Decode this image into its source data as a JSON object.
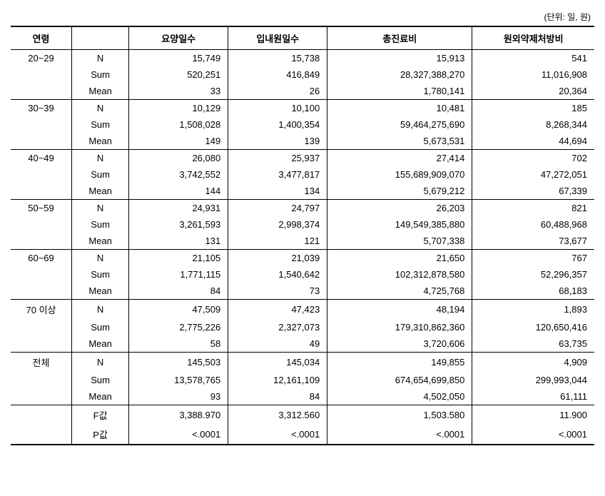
{
  "unit_label": "(단위: 일, 원)",
  "headers": {
    "age": "연령",
    "blank": "",
    "col1": "요양일수",
    "col2": "입내원일수",
    "col3": "총진료비",
    "col4": "원외약제처방비"
  },
  "stat_labels": {
    "n": "N",
    "sum": "Sum",
    "mean": "Mean",
    "fval": "F값",
    "pval": "P값"
  },
  "groups": [
    {
      "age": "20~29",
      "rows": [
        {
          "stat": "N",
          "v1": "15,749",
          "v2": "15,738",
          "v3": "15,913",
          "v4": "541"
        },
        {
          "stat": "Sum",
          "v1": "520,251",
          "v2": "416,849",
          "v3": "28,327,388,270",
          "v4": "11,016,908"
        },
        {
          "stat": "Mean",
          "v1": "33",
          "v2": "26",
          "v3": "1,780,141",
          "v4": "20,364"
        }
      ]
    },
    {
      "age": "30~39",
      "rows": [
        {
          "stat": "N",
          "v1": "10,129",
          "v2": "10,100",
          "v3": "10,481",
          "v4": "185"
        },
        {
          "stat": "Sum",
          "v1": "1,508,028",
          "v2": "1,400,354",
          "v3": "59,464,275,690",
          "v4": "8,268,344"
        },
        {
          "stat": "Mean",
          "v1": "149",
          "v2": "139",
          "v3": "5,673,531",
          "v4": "44,694"
        }
      ]
    },
    {
      "age": "40~49",
      "rows": [
        {
          "stat": "N",
          "v1": "26,080",
          "v2": "25,937",
          "v3": "27,414",
          "v4": "702"
        },
        {
          "stat": "Sum",
          "v1": "3,742,552",
          "v2": "3,477,817",
          "v3": "155,689,909,070",
          "v4": "47,272,051"
        },
        {
          "stat": "Mean",
          "v1": "144",
          "v2": "134",
          "v3": "5,679,212",
          "v4": "67,339"
        }
      ]
    },
    {
      "age": "50~59",
      "rows": [
        {
          "stat": "N",
          "v1": "24,931",
          "v2": "24,797",
          "v3": "26,203",
          "v4": "821"
        },
        {
          "stat": "Sum",
          "v1": "3,261,593",
          "v2": "2,998,374",
          "v3": "149,549,385,880",
          "v4": "60,488,968"
        },
        {
          "stat": "Mean",
          "v1": "131",
          "v2": "121",
          "v3": "5,707,338",
          "v4": "73,677"
        }
      ]
    },
    {
      "age": "60~69",
      "rows": [
        {
          "stat": "N",
          "v1": "21,105",
          "v2": "21,039",
          "v3": "21,650",
          "v4": "767"
        },
        {
          "stat": "Sum",
          "v1": "1,771,115",
          "v2": "1,540,642",
          "v3": "102,312,878,580",
          "v4": "52,296,357"
        },
        {
          "stat": "Mean",
          "v1": "84",
          "v2": "73",
          "v3": "4,725,768",
          "v4": "68,183"
        }
      ]
    },
    {
      "age": "70 이상",
      "rows": [
        {
          "stat": "N",
          "v1": "47,509",
          "v2": "47,423",
          "v3": "48,194",
          "v4": "1,893"
        },
        {
          "stat": "Sum",
          "v1": "2,775,226",
          "v2": "2,327,073",
          "v3": "179,310,862,360",
          "v4": "120,650,416"
        },
        {
          "stat": "Mean",
          "v1": "58",
          "v2": "49",
          "v3": "3,720,606",
          "v4": "63,735"
        }
      ]
    },
    {
      "age": "전체",
      "rows": [
        {
          "stat": "N",
          "v1": "145,503",
          "v2": "145,034",
          "v3": "149,855",
          "v4": "4,909"
        },
        {
          "stat": "Sum",
          "v1": "13,578,765",
          "v2": "12,161,109",
          "v3": "674,654,699,850",
          "v4": "299,993,044"
        },
        {
          "stat": "Mean",
          "v1": "93",
          "v2": "84",
          "v3": "4,502,050",
          "v4": "61,111"
        }
      ]
    }
  ],
  "footer": [
    {
      "stat": "F값",
      "v1": "3,388.970",
      "v2": "3,312.560",
      "v3": "1,503.580",
      "v4": "11.900"
    },
    {
      "stat": "P값",
      "v1": "<.0001",
      "v2": "<.0001",
      "v3": "<.0001",
      "v4": "<.0001"
    }
  ]
}
